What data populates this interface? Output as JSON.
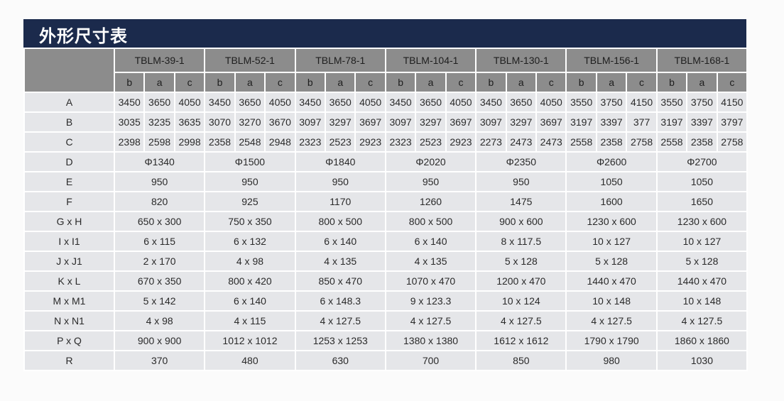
{
  "title": "外形尺寸表",
  "models": [
    "TBLM-39-1",
    "TBLM-52-1",
    "TBLM-78-1",
    "TBLM-104-1",
    "TBLM-130-1",
    "TBLM-156-1",
    "TBLM-168-1"
  ],
  "subcolumns": [
    "b",
    "a",
    "c"
  ],
  "rows": [
    {
      "label": "A",
      "values": [
        "3450",
        "3650",
        "4050",
        "3450",
        "3650",
        "4050",
        "3450",
        "3650",
        "4050",
        "3450",
        "3650",
        "4050",
        "3450",
        "3650",
        "4050",
        "3550",
        "3750",
        "4150",
        "3550",
        "3750",
        "4150"
      ]
    },
    {
      "label": "B",
      "values": [
        "3035",
        "3235",
        "3635",
        "3070",
        "3270",
        "3670",
        "3097",
        "3297",
        "3697",
        "3097",
        "3297",
        "3697",
        "3097",
        "3297",
        "3697",
        "3197",
        "3397",
        "377",
        "3197",
        "3397",
        "3797"
      ]
    },
    {
      "label": "C",
      "values": [
        "2398",
        "2598",
        "2998",
        "2358",
        "2548",
        "2948",
        "2323",
        "2523",
        "2923",
        "2323",
        "2523",
        "2923",
        "2273",
        "2473",
        "2473",
        "2558",
        "2358",
        "2758",
        "2558",
        "2358",
        "2758"
      ]
    },
    {
      "label": "D",
      "values": [
        "Φ1340",
        "Φ1500",
        "Φ1840",
        "Φ2020",
        "Φ2350",
        "Φ2600",
        "Φ2700"
      ]
    },
    {
      "label": "E",
      "values": [
        "950",
        "950",
        "950",
        "950",
        "950",
        "1050",
        "1050"
      ]
    },
    {
      "label": "F",
      "values": [
        "820",
        "925",
        "1170",
        "1260",
        "1475",
        "1600",
        "1650"
      ]
    },
    {
      "label": "G x H",
      "values": [
        "650 x 300",
        "750 x 350",
        "800 x 500",
        "800 x 500",
        "900 x 600",
        "1230 x 600",
        "1230 x 600"
      ]
    },
    {
      "label": "I x I1",
      "values": [
        "6 x 115",
        "6 x 132",
        "6 x 140",
        "6 x 140",
        "8 x 117.5",
        "10 x 127",
        "10 x 127"
      ]
    },
    {
      "label": "J x J1",
      "values": [
        "2 x 170",
        "4 x 98",
        "4 x 135",
        "4 x 135",
        "5 x 128",
        "5 x 128",
        "5 x 128"
      ]
    },
    {
      "label": "K x L",
      "values": [
        "670 x 350",
        "800 x 420",
        "850 x 470",
        "1070 x 470",
        "1200 x 470",
        "1440 x 470",
        "1440 x 470"
      ]
    },
    {
      "label": "M x M1",
      "values": [
        "5 x 142",
        "6 x 140",
        "6 x 148.3",
        "9 x 123.3",
        "10 x 124",
        "10 x 148",
        "10 x 148"
      ]
    },
    {
      "label": "N x N1",
      "values": [
        "4 x 98",
        "4 x 115",
        "4 x 127.5",
        "4 x 127.5",
        "4 x 127.5",
        "4 x 127.5",
        "4 x 127.5"
      ]
    },
    {
      "label": "P x Q",
      "values": [
        "900 x 900",
        "1012 x 1012",
        "1253 x 1253",
        "1380 x 1380",
        "1612 x 1612",
        "1790 x 1790",
        "1860 x 1860"
      ]
    },
    {
      "label": "R",
      "values": [
        "370",
        "480",
        "630",
        "700",
        "850",
        "980",
        "1030"
      ]
    }
  ],
  "colors": {
    "title_bar": "#1b2a4c",
    "header": "#8c8c8c",
    "cell": "#e5e6e9"
  }
}
